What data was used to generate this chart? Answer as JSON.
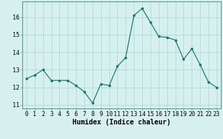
{
  "x": [
    0,
    1,
    2,
    3,
    4,
    5,
    6,
    7,
    8,
    9,
    10,
    11,
    12,
    13,
    14,
    15,
    16,
    17,
    18,
    19,
    20,
    21,
    22,
    23
  ],
  "y": [
    12.5,
    12.7,
    13.0,
    12.4,
    12.4,
    12.4,
    12.1,
    11.75,
    11.1,
    12.2,
    12.1,
    13.2,
    13.7,
    16.1,
    16.5,
    15.7,
    14.9,
    14.85,
    14.7,
    13.6,
    14.2,
    13.3,
    12.3,
    12.0
  ],
  "line_color": "#1a7a6a",
  "marker_color": "#1a7a6a",
  "bg_color": "#d6f0ef",
  "grid_color": "#b0d8d5",
  "xlabel": "Humidex (Indice chaleur)",
  "ylim": [
    10.8,
    16.9
  ],
  "yticks": [
    11,
    12,
    13,
    14,
    15,
    16
  ],
  "xticks": [
    0,
    1,
    2,
    3,
    4,
    5,
    6,
    7,
    8,
    9,
    10,
    11,
    12,
    13,
    14,
    15,
    16,
    17,
    18,
    19,
    20,
    21,
    22,
    23
  ],
  "tick_fontsize": 6.0,
  "xlabel_fontsize": 7.0
}
